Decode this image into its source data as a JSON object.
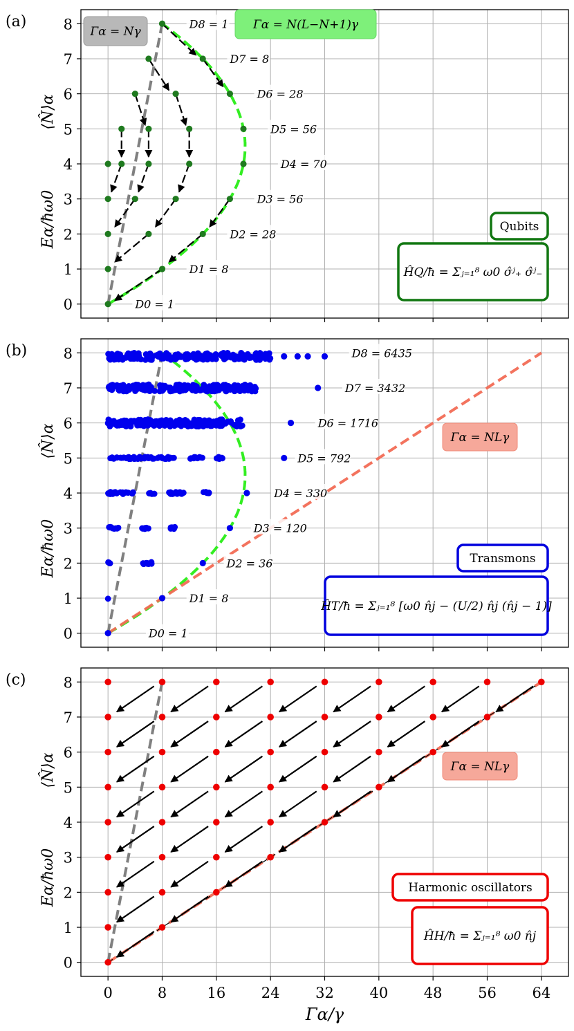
{
  "chart_data": [
    {
      "panel_label": "(a)",
      "type": "scatter",
      "title": "",
      "ylabel_energy": "Eα/ħω0",
      "ylabel_number": "⟨N̂⟩α",
      "xlim": [
        -4,
        68
      ],
      "ylim": [
        -0.4,
        8.4
      ],
      "xticks": [
        0,
        8,
        16,
        24,
        32,
        40,
        48,
        56,
        64
      ],
      "yticks": [
        0,
        1,
        2,
        3,
        4,
        5,
        6,
        7,
        8
      ],
      "grid": true,
      "point_color": "#1f7a1f",
      "points": [
        [
          0,
          0
        ],
        [
          0,
          1
        ],
        [
          8,
          1
        ],
        [
          0,
          2
        ],
        [
          6,
          2
        ],
        [
          14,
          2
        ],
        [
          0,
          3
        ],
        [
          4,
          3
        ],
        [
          10,
          3
        ],
        [
          18,
          3
        ],
        [
          0,
          4
        ],
        [
          2,
          4
        ],
        [
          6,
          4
        ],
        [
          12,
          4
        ],
        [
          20,
          4
        ],
        [
          2,
          5
        ],
        [
          6,
          5
        ],
        [
          12,
          5
        ],
        [
          20,
          5
        ],
        [
          4,
          6
        ],
        [
          10,
          6
        ],
        [
          18,
          6
        ],
        [
          6,
          7
        ],
        [
          14,
          7
        ],
        [
          8,
          8
        ]
      ],
      "arrows": [
        {
          "from": [
            8,
            8
          ],
          "to": [
            13,
            7.1
          ]
        },
        {
          "from": [
            6,
            7
          ],
          "to": [
            9,
            6.1
          ]
        },
        {
          "from": [
            14,
            7
          ],
          "to": [
            17,
            6.2
          ]
        },
        {
          "from": [
            4,
            6
          ],
          "to": [
            5.5,
            5.1
          ]
        },
        {
          "from": [
            10,
            6
          ],
          "to": [
            11.5,
            5.1
          ]
        },
        {
          "from": [
            2,
            5
          ],
          "to": [
            2,
            4.2
          ]
        },
        {
          "from": [
            6,
            5
          ],
          "to": [
            6,
            4.2
          ]
        },
        {
          "from": [
            12,
            5
          ],
          "to": [
            12,
            4.2
          ]
        },
        {
          "from": [
            2,
            4
          ],
          "to": [
            0.5,
            3.2
          ]
        },
        {
          "from": [
            6,
            4
          ],
          "to": [
            4.5,
            3.2
          ]
        },
        {
          "from": [
            12,
            4
          ],
          "to": [
            10.5,
            3.2
          ]
        },
        {
          "from": [
            4,
            3
          ],
          "to": [
            1,
            2.2
          ]
        },
        {
          "from": [
            10,
            3
          ],
          "to": [
            7,
            2.2
          ]
        },
        {
          "from": [
            18,
            3
          ],
          "to": [
            15,
            2.2
          ]
        },
        {
          "from": [
            6,
            2
          ],
          "to": [
            1,
            1.2
          ]
        },
        {
          "from": [
            14,
            2
          ],
          "to": [
            9,
            1.2
          ]
        },
        {
          "from": [
            8,
            1
          ],
          "to": [
            1,
            0.1
          ]
        }
      ],
      "curves": [
        {
          "name": "Γα=Nγ",
          "style": "gray-dashed",
          "color": "#808080",
          "x": [
            0,
            8
          ],
          "y": [
            0,
            8
          ]
        },
        {
          "name": "Γα=N(L−N+1)γ",
          "style": "green-dashed",
          "color": "#33ee22",
          "L": 8
        }
      ],
      "degeneracy_labels": [
        {
          "text": "D0 = 1",
          "x": 4,
          "y": 0
        },
        {
          "text": "D1 = 8",
          "x": 12,
          "y": 1
        },
        {
          "text": "D2 = 28",
          "x": 18,
          "y": 2
        },
        {
          "text": "D3 = 56",
          "x": 22,
          "y": 3
        },
        {
          "text": "D4 = 70",
          "x": 25.5,
          "y": 4
        },
        {
          "text": "D5 = 56",
          "x": 24,
          "y": 5
        },
        {
          "text": "D6 = 28",
          "x": 22,
          "y": 6
        },
        {
          "text": "D7 = 8",
          "x": 18,
          "y": 7
        },
        {
          "text": "D8 = 1",
          "x": 12,
          "y": 8
        }
      ],
      "legend_boxes": [
        {
          "text": "Γα = Nγ",
          "style": "gray-filled",
          "position": "top-left"
        },
        {
          "text": "Γα = N(L−N+1)γ",
          "style": "green-filled",
          "position": "top-center"
        },
        {
          "text": "Qubits",
          "style": "green-outline",
          "position": "bottom-right"
        },
        {
          "text": "ĤQ/ħ = Σⱼ₌₁⁸ ω0 σ̂ʲ₊ σ̂ʲ₋",
          "style": "green-outline",
          "position": "bottom-right"
        }
      ]
    },
    {
      "panel_label": "(b)",
      "type": "scatter",
      "title": "",
      "ylabel_energy": "Eα/ħω0",
      "ylabel_number": "⟨N̂⟩α",
      "xlim": [
        -4,
        68
      ],
      "ylim": [
        -0.4,
        8.4
      ],
      "xticks": [
        0,
        8,
        16,
        24,
        32,
        40,
        48,
        56,
        64
      ],
      "yticks": [
        0,
        1,
        2,
        3,
        4,
        5,
        6,
        7,
        8
      ],
      "grid": true,
      "point_color": "#0000ee",
      "levels": [
        {
          "y": 0,
          "x_ranges": [
            [
              0,
              0
            ]
          ],
          "extra": [
            0
          ]
        },
        {
          "y": 1,
          "x_ranges": [
            [
              0,
              0
            ]
          ],
          "extra": [
            8
          ]
        },
        {
          "y": 2,
          "x_ranges": [
            [
              0,
              0.5
            ],
            [
              5,
              6.5
            ]
          ],
          "extra": [
            14
          ]
        },
        {
          "y": 3,
          "x_ranges": [
            [
              0,
              2
            ],
            [
              5,
              6
            ],
            [
              9,
              10
            ]
          ],
          "extra": [
            18
          ]
        },
        {
          "y": 4,
          "x_ranges": [
            [
              0,
              4
            ],
            [
              6,
              7
            ],
            [
              9,
              12
            ],
            [
              14,
              15
            ]
          ],
          "extra": [
            20.5
          ]
        },
        {
          "y": 5,
          "x_ranges": [
            [
              0,
              10
            ],
            [
              12,
              14
            ],
            [
              16,
              17
            ]
          ],
          "extra": [
            26
          ]
        },
        {
          "y": 6,
          "x_ranges": [
            [
              0,
              20
            ]
          ],
          "extra": [
            27
          ]
        },
        {
          "y": 7,
          "x_ranges": [
            [
              0,
              22
            ]
          ],
          "extra": [
            31
          ]
        },
        {
          "y": 7.9,
          "x_ranges": [
            [
              0,
              24
            ]
          ],
          "extra": [
            26,
            28,
            29.5,
            32
          ]
        }
      ],
      "curves": [
        {
          "name": "Γα=Nγ",
          "style": "gray-dashed",
          "color": "#808080",
          "x": [
            0,
            8
          ],
          "y": [
            0,
            8
          ]
        },
        {
          "name": "Γα=N(L−N+1)γ",
          "style": "green-dashed",
          "color": "#33ee22",
          "L": 8
        },
        {
          "name": "Γα=NLγ",
          "style": "salmon-dashed",
          "color": "#f26b55",
          "x": [
            0,
            64
          ],
          "y": [
            0,
            8
          ]
        }
      ],
      "degeneracy_labels": [
        {
          "text": "D0 = 1",
          "x": 6,
          "y": 0
        },
        {
          "text": "D1 = 8",
          "x": 12,
          "y": 1
        },
        {
          "text": "D2 = 36",
          "x": 17.5,
          "y": 2
        },
        {
          "text": "D3 = 120",
          "x": 21.5,
          "y": 3
        },
        {
          "text": "D4 = 330",
          "x": 24.5,
          "y": 4
        },
        {
          "text": "D5 = 792",
          "x": 28,
          "y": 5
        },
        {
          "text": "D6 = 1716",
          "x": 31,
          "y": 6
        },
        {
          "text": "D7 = 3432",
          "x": 35,
          "y": 7
        },
        {
          "text": "D8 = 6435",
          "x": 36,
          "y": 8
        }
      ],
      "legend_boxes": [
        {
          "text": "Γα = NLγ",
          "style": "salmon-filled",
          "position": "center-right"
        },
        {
          "text": "Transmons",
          "style": "blue-outline",
          "position": "bottom-right"
        },
        {
          "text": "ĤT/ħ = Σⱼ₌₁⁸ [ω0 n̂j − (U/2) n̂j (n̂j − 1)]",
          "style": "blue-outline",
          "position": "bottom-right"
        }
      ]
    },
    {
      "panel_label": "(c)",
      "type": "scatter",
      "title": "",
      "ylabel_energy": "Eα/ħω0",
      "ylabel_number": "⟨N̂⟩α",
      "xlabel": "Γα/γ",
      "xlim": [
        -4,
        68
      ],
      "ylim": [
        -0.4,
        8.4
      ],
      "xticks": [
        0,
        8,
        16,
        24,
        32,
        40,
        48,
        56,
        64
      ],
      "xticklabels": [
        "0",
        "8",
        "16",
        "24",
        "32",
        "40",
        "48",
        "56",
        "64"
      ],
      "yticks": [
        0,
        1,
        2,
        3,
        4,
        5,
        6,
        7,
        8
      ],
      "grid": true,
      "point_color": "#ee0000",
      "points_rule": "N from 0 to 8, Γ = 8k for k = 0..N",
      "arrows_rule": "from (8k, N) to (8(k−1)+1, N−1+0.2) for k = 1..N",
      "curves": [
        {
          "name": "Γα=Nγ",
          "style": "gray-dashed",
          "color": "#808080",
          "x": [
            0,
            8
          ],
          "y": [
            0,
            8
          ]
        },
        {
          "name": "Γα=NLγ",
          "style": "salmon-dashed",
          "color": "#f26b55",
          "x": [
            0,
            64
          ],
          "y": [
            0,
            8
          ]
        }
      ],
      "legend_boxes": [
        {
          "text": "Γα = NLγ",
          "style": "salmon-filled",
          "position": "center-right"
        },
        {
          "text": "Harmonic oscillators",
          "style": "red-outline",
          "position": "bottom-right"
        },
        {
          "text": "ĤH/ħ = Σⱼ₌₁⁸ ω0 n̂j",
          "style": "red-outline",
          "position": "bottom-right"
        }
      ]
    }
  ]
}
